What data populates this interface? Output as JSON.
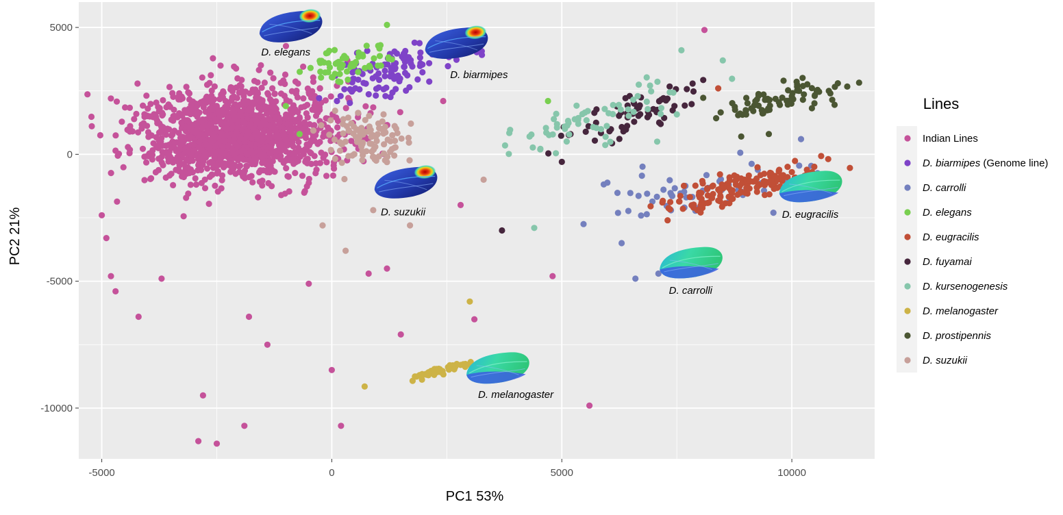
{
  "chart_data": {
    "type": "scatter",
    "xlabel": "PC1 53%",
    "ylabel": "PC2 21%",
    "xlim": [
      -5500,
      11800
    ],
    "ylim": [
      -12000,
      6000
    ],
    "x_ticks": [
      -5000,
      0,
      5000,
      10000
    ],
    "x_tick_labels": [
      "-5000",
      "0",
      "5000",
      "10000"
    ],
    "y_ticks": [
      5000,
      0,
      -5000,
      -10000
    ],
    "y_tick_labels": [
      "5000",
      "0",
      "-5000",
      "-10000"
    ],
    "grid": true,
    "legend": {
      "title": "Lines",
      "position": "right",
      "entries": [
        {
          "label": "Indian Lines",
          "italic": "",
          "suffix": "Indian Lines",
          "color": "#C5529A"
        },
        {
          "label": "D. biarmipes (Genome line)",
          "italic": "D. biarmipes",
          "suffix": " (Genome line)",
          "color": "#7F43C8"
        },
        {
          "label": "D. carrolli",
          "italic": "D. carrolli",
          "suffix": "",
          "color": "#7480BE"
        },
        {
          "label": "D. elegans",
          "italic": "D. elegans",
          "suffix": "",
          "color": "#79CF50"
        },
        {
          "label": "D. eugracilis",
          "italic": "D. eugracilis",
          "suffix": "",
          "color": "#C14F37"
        },
        {
          "label": "D. fuyamai",
          "italic": "D. fuyamai",
          "suffix": "",
          "color": "#46263D"
        },
        {
          "label": "D. kursenogenesis",
          "italic": "D. kursenogenesis",
          "suffix": "",
          "color": "#86C6AB"
        },
        {
          "label": "D. melanogaster",
          "italic": "D. melanogaster",
          "suffix": "",
          "color": "#CDB347"
        },
        {
          "label": "D. prostipennis",
          "italic": "D. prostipennis",
          "suffix": "",
          "color": "#4B5633"
        },
        {
          "label": "D. suzukii",
          "italic": "D. suzukii",
          "suffix": "",
          "color": "#C7A09A"
        }
      ]
    },
    "series": [
      {
        "name": "Indian Lines",
        "color": "#C5529A",
        "n": 1400,
        "center": [
          -2000,
          800
        ],
        "spread": [
          1100,
          1600
        ],
        "rot": 0.5,
        "outliers": [
          [
            -5000,
            -2400
          ],
          [
            -4900,
            -3300
          ],
          [
            -4800,
            -4800
          ],
          [
            -4700,
            -5400
          ],
          [
            -4200,
            -6400
          ],
          [
            -2800,
            -9500
          ],
          [
            -2500,
            -11400
          ],
          [
            -2900,
            -11300
          ],
          [
            -1900,
            -10700
          ],
          [
            -1400,
            -7500
          ],
          [
            -1800,
            -6400
          ],
          [
            -500,
            -5100
          ],
          [
            0,
            -8500
          ],
          [
            200,
            -10700
          ],
          [
            800,
            -4700
          ],
          [
            1200,
            -4500
          ],
          [
            1500,
            -7100
          ],
          [
            2800,
            -2000
          ],
          [
            3100,
            -6500
          ],
          [
            4800,
            -4800
          ],
          [
            5600,
            -9900
          ],
          [
            8100,
            4900
          ],
          [
            -4000,
            1800
          ],
          [
            -3700,
            -4900
          ]
        ]
      },
      {
        "name": "D. biarmipes (Genome line)",
        "color": "#7F43C8",
        "n": 110,
        "center": [
          1400,
          3300
        ],
        "spread": [
          800,
          600
        ],
        "rot": 0.55,
        "outliers": [
          [
            2400,
            4100
          ],
          [
            1800,
            4400
          ]
        ]
      },
      {
        "name": "D. carrolli",
        "color": "#7480BE",
        "n": 60,
        "center": [
          8000,
          -1400
        ],
        "spread": [
          1300,
          800
        ],
        "rot": 0.35,
        "outliers": [
          [
            6600,
            -4900
          ],
          [
            7100,
            -4700
          ],
          [
            6300,
            -3500
          ],
          [
            9600,
            -2300
          ],
          [
            10200,
            600
          ]
        ]
      },
      {
        "name": "D. elegans",
        "color": "#79CF50",
        "n": 60,
        "center": [
          300,
          3600
        ],
        "spread": [
          500,
          500
        ],
        "rot": 0.4,
        "outliers": [
          [
            1200,
            5100
          ],
          [
            -1000,
            1900
          ],
          [
            4700,
            2100
          ],
          [
            -700,
            800
          ]
        ]
      },
      {
        "name": "D. eugracilis",
        "color": "#C14F37",
        "n": 150,
        "center": [
          8900,
          -1300
        ],
        "spread": [
          900,
          450
        ],
        "rot": 0.45,
        "outliers": [
          [
            7300,
            -2600
          ],
          [
            8400,
            2600
          ],
          [
            10000,
            -700
          ]
        ]
      },
      {
        "name": "D. fuyamai",
        "color": "#46263D",
        "n": 70,
        "center": [
          6600,
          1600
        ],
        "spread": [
          900,
          500
        ],
        "rot": 0.6,
        "outliers": [
          [
            3700,
            -3000
          ],
          [
            5000,
            -300
          ]
        ]
      },
      {
        "name": "D. kursenogenesis",
        "color": "#86C6AB",
        "n": 65,
        "center": [
          5800,
          1400
        ],
        "spread": [
          1300,
          700
        ],
        "rot": 0.5,
        "outliers": [
          [
            7600,
            4100
          ],
          [
            8500,
            3700
          ],
          [
            4400,
            -2900
          ],
          [
            4300,
            700
          ]
        ]
      },
      {
        "name": "D. melanogaster",
        "color": "#CDB347",
        "n": 45,
        "center": [
          2400,
          -8500
        ],
        "spread": [
          500,
          120
        ],
        "rot": 0.45,
        "outliers": [
          [
            3000,
            -5800
          ]
        ]
      },
      {
        "name": "D. prostipennis",
        "color": "#4B5633",
        "n": 75,
        "center": [
          9800,
          2200
        ],
        "spread": [
          800,
          450
        ],
        "rot": 0.45,
        "outliers": [
          [
            9500,
            800
          ],
          [
            8900,
            700
          ],
          [
            11000,
            2800
          ]
        ]
      },
      {
        "name": "D. suzukii",
        "color": "#C7A09A",
        "n": 100,
        "center": [
          700,
          600
        ],
        "spread": [
          500,
          900
        ],
        "rot": 0.3,
        "outliers": [
          [
            3300,
            -1000
          ],
          [
            -200,
            -2800
          ],
          [
            300,
            -3800
          ],
          [
            1700,
            -2800
          ],
          [
            900,
            -2200
          ]
        ]
      }
    ],
    "annotations": [
      {
        "text": "D. elegans",
        "x": -1000,
        "y": 3900
      },
      {
        "text": "D. biarmipes",
        "x": 3200,
        "y": 3000
      },
      {
        "text": "D. suzukii",
        "x": 1550,
        "y": -2400
      },
      {
        "text": "D. eugracilis",
        "x": 10400,
        "y": -2500
      },
      {
        "text": "D. carrolli",
        "x": 7800,
        "y": -5500
      },
      {
        "text": "D. melanogaster",
        "x": 4000,
        "y": -9600
      }
    ],
    "wing_images": [
      {
        "x": -900,
        "y": 5050,
        "hot": true
      },
      {
        "x": 2700,
        "y": 4400,
        "hot": true
      },
      {
        "x": 1600,
        "y": -1100,
        "hot": true
      },
      {
        "x": 10400,
        "y": -1250,
        "hot": false
      },
      {
        "x": 7800,
        "y": -4250,
        "hot": false
      },
      {
        "x": 3600,
        "y": -8400,
        "hot": false
      }
    ]
  }
}
